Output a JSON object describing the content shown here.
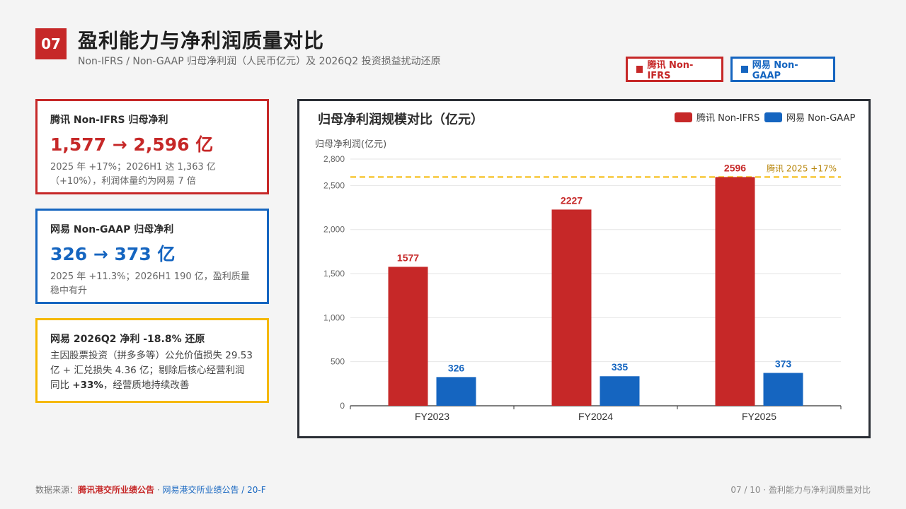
{
  "header": {
    "number": "07",
    "title": "盈利能力与净利润质量对比",
    "subtitle": "Non-IFRS / Non-GAAP 归母净利润（人民币亿元）及 2026Q2 投资损益扰动还原"
  },
  "top_legend": {
    "tencent": "腾讯 Non-IFRS",
    "netease": "网易 Non-GAAP"
  },
  "cards": [
    {
      "head": "腾讯 Non-IFRS 归母净利",
      "big": "1,577 → 2,596 亿",
      "body": "2025 年 +17%；2026H1 达 1,363 亿（+10%），利润体量约为网易 7 倍"
    },
    {
      "head": "网易 Non-GAAP 归母净利",
      "big": "326 → 373 亿",
      "body": "2025 年 +11.3%；2026H1 190 亿，盈利质量稳中有升"
    },
    {
      "head": "网易 2026Q2 净利 -18.8% 还原",
      "body_pre": "主因股票投资（拼多多等）公允价值损失 29.53 亿 + 汇兑损失 4.36 亿；剔除后核心经营利润同比 ",
      "body_bold": "+33%",
      "body_post": "，经营质地持续改善"
    }
  ],
  "chart_data": {
    "type": "bar",
    "title": "归母净利润规模对比（亿元）",
    "ylabel": "归母净利润(亿元)",
    "categories": [
      "FY2023",
      "FY2024",
      "FY2025"
    ],
    "series": [
      {
        "name": "腾讯 Non-IFRS",
        "values": [
          1577,
          2227,
          2596
        ],
        "color": "#c62828"
      },
      {
        "name": "网易 Non-GAAP",
        "values": [
          326,
          335,
          373
        ],
        "color": "#1565c0"
      }
    ],
    "ylim": [
      0,
      2800
    ],
    "yticks": [
      0,
      500,
      1000,
      1500,
      2000,
      2500,
      2800
    ],
    "ytick_labels": [
      "0",
      "500",
      "1,000",
      "1,500",
      "2,000",
      "2,500",
      "2,800"
    ],
    "reference_line": {
      "value": 2596,
      "label": "腾讯 2025 +17%",
      "color": "#f5b800"
    },
    "legend_position": "top-right",
    "grid": true
  },
  "footer": {
    "source_label": "数据来源：",
    "source_tencent": "腾讯港交所业绩公告",
    "sep": " · ",
    "source_netease": "网易港交所业绩公告 / 20-F",
    "page": "07 / 10 · 盈利能力与净利润质量对比"
  }
}
